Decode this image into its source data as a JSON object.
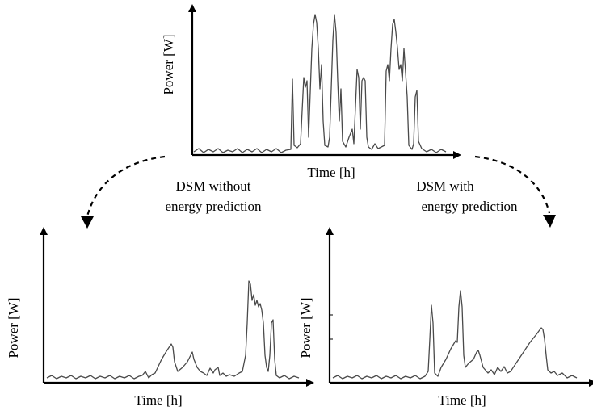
{
  "top_chart": {
    "ylabel": "Power [W]",
    "xlabel": "Time [h]"
  },
  "left_chart": {
    "ylabel": "Power [W]",
    "xlabel": "Time [h]"
  },
  "right_chart": {
    "ylabel": "Power [W]",
    "xlabel": "Time [h]"
  },
  "left_transition": {
    "line1": "DSM without",
    "line2": "energy prediction"
  },
  "right_transition": {
    "line1": "DSM with",
    "line2": "energy prediction"
  }
}
